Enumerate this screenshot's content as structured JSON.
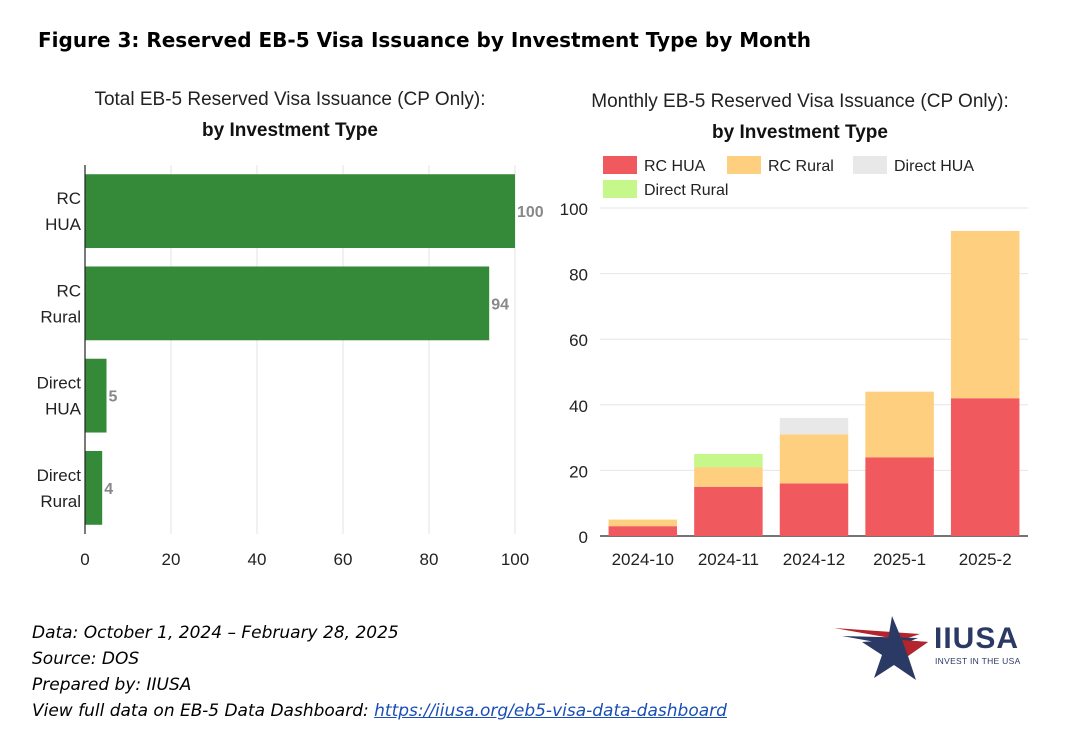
{
  "figure_title": "Figure 3: Reserved EB-5 Visa Issuance by Investment Type by Month",
  "notes": {
    "line1": "Data: October 1, 2024 – February 28, 2025",
    "line2": "Source: DOS",
    "line3": "Prepared by: IIUSA",
    "line4_prefix": "View full data on EB-5 Data Dashboard: ",
    "line4_link": "https://iiusa.org/eb5-visa-data-dashboard"
  },
  "logo": {
    "name": "IIUSA",
    "tagline": "INVEST IN THE USA",
    "icon": "star-swoosh-icon"
  },
  "chart_data": [
    {
      "type": "bar",
      "orientation": "horizontal",
      "title": "Total EB-5 Reserved Visa Issuance (CP Only):",
      "subtitle": "by Investment Type",
      "categories": [
        [
          "RC",
          "HUA"
        ],
        [
          "RC",
          "Rural"
        ],
        [
          "Direct",
          "HUA"
        ],
        [
          "Direct",
          "Rural"
        ]
      ],
      "values": [
        100,
        94,
        5,
        4
      ],
      "xlim": [
        0,
        100
      ],
      "xticks": [
        0,
        20,
        40,
        60,
        80,
        100
      ],
      "grid": "vertical",
      "color": "#358a3a",
      "label_color": "#888888"
    },
    {
      "type": "bar",
      "stacked": true,
      "title": "Monthly EB-5 Reserved Visa Issuance (CP Only):",
      "subtitle": "by Investment Type",
      "categories": [
        "2024-10",
        "2024-11",
        "2024-12",
        "2025-1",
        "2025-2"
      ],
      "series": [
        {
          "name": "RC HUA",
          "color": "#f05a5f",
          "values": [
            3,
            15,
            16,
            24,
            42
          ]
        },
        {
          "name": "RC Rural",
          "color": "#fdcf7e",
          "values": [
            2,
            6,
            15,
            20,
            51
          ]
        },
        {
          "name": "Direct HUA",
          "color": "#e8e8e8",
          "values": [
            0,
            0,
            5,
            0,
            0
          ]
        },
        {
          "name": "Direct Rural",
          "color": "#c6f78a",
          "values": [
            0,
            4,
            0,
            0,
            0
          ]
        }
      ],
      "ylim": [
        0,
        100
      ],
      "yticks": [
        0,
        20,
        40,
        60,
        80,
        100
      ],
      "grid": "horizontal",
      "legend": "top-left"
    }
  ]
}
